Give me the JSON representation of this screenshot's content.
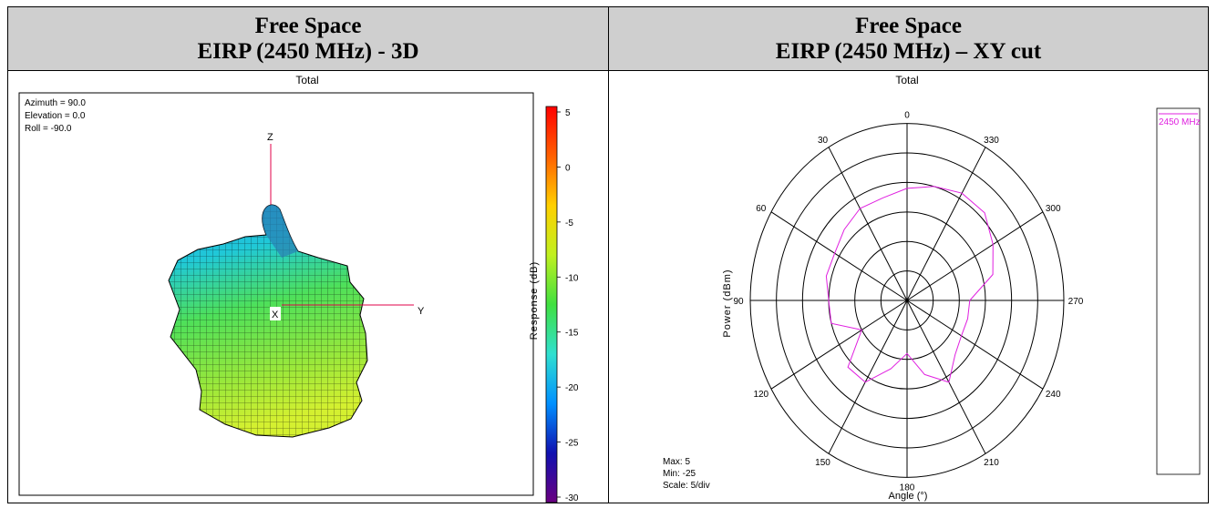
{
  "left_panel": {
    "title_line1": "Free Space",
    "title_line2": "EIRP (2450 MHz) - 3D",
    "plot_title": "Total",
    "view": {
      "azimuth": "Azimuth = 90.0",
      "elevation": "Elevation = 0.0",
      "roll": "Roll = -90.0"
    },
    "axes": {
      "z": "Z",
      "y": "Y",
      "x": "X"
    },
    "colorbar": {
      "label": "Response (dB)",
      "ticks": [
        "5",
        "0",
        "-5",
        "-10",
        "-15",
        "-20",
        "-25",
        "-30"
      ],
      "min": -30,
      "max": 5,
      "colors": [
        "#6a0080",
        "#1010b0",
        "#0090ff",
        "#30e0d0",
        "#40e040",
        "#c0f020",
        "#ffd000",
        "#ff6000",
        "#ff0000"
      ]
    }
  },
  "right_panel": {
    "title_line1": "Free Space",
    "title_line2": "EIRP (2450 MHz) – XY cut",
    "plot_title": "Total",
    "ylabel": "Power (dBm)",
    "xlabel": "Angle (°)",
    "legend_entry": "2450 MHz",
    "stats": {
      "max": "Max: 5",
      "min": "Min: -25",
      "scale": "Scale: 5/div"
    },
    "series_color": "#e020e0"
  },
  "chart_data": [
    {
      "type": "polar",
      "title": "Total",
      "ylabel": "Power (dBm)",
      "xlabel": "Angle (°)",
      "r_range": [
        -25,
        5
      ],
      "r_step": 5,
      "angle_ticks": [
        "0",
        "30",
        "60",
        "90",
        "120",
        "150",
        "180",
        "210",
        "240",
        "270",
        "300",
        "330"
      ],
      "angle_direction": "counterclockwise",
      "zero_location": "top",
      "series": [
        {
          "name": "2450 MHz",
          "angles": [
            0,
            15,
            30,
            45,
            60,
            75,
            90,
            105,
            120,
            135,
            150,
            165,
            180,
            195,
            210,
            225,
            240,
            255,
            270,
            285,
            300,
            315,
            330,
            345
          ],
          "values": [
            -6,
            -7,
            -7,
            -8,
            -9,
            -9,
            -10,
            -10,
            -15,
            -9,
            -9,
            -13,
            -16,
            -12,
            -9,
            -12,
            -13,
            -13,
            -13,
            -8,
            -6,
            -4,
            -4,
            -5
          ]
        }
      ]
    }
  ]
}
